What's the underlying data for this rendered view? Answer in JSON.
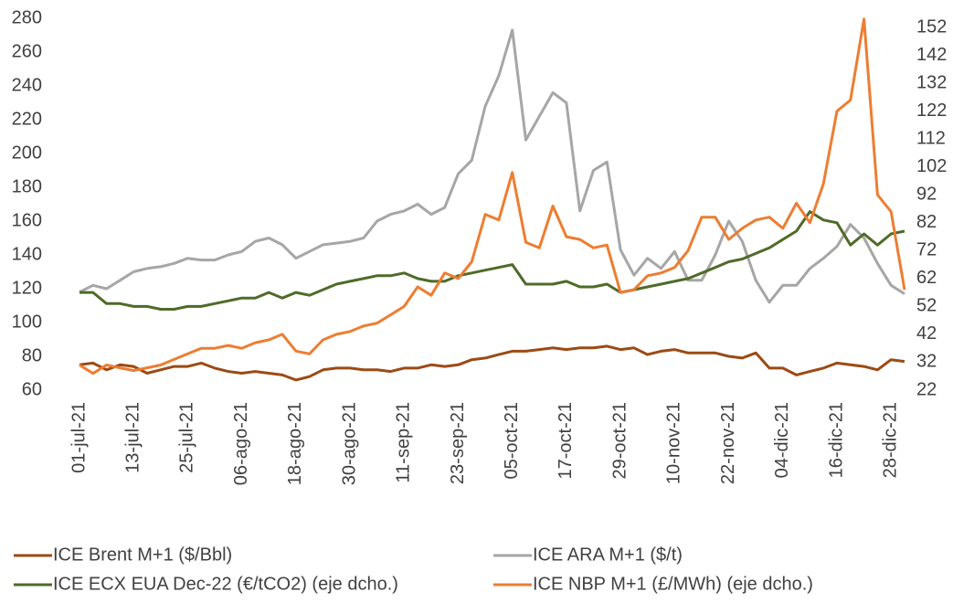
{
  "chart_data": {
    "type": "line",
    "categories": [
      "01-jul-21",
      null,
      null,
      null,
      "13-jul-21",
      null,
      null,
      null,
      "25-jul-21",
      null,
      null,
      null,
      "06-ago-21",
      null,
      null,
      null,
      "18-ago-21",
      null,
      null,
      null,
      "30-ago-21",
      null,
      null,
      null,
      "11-sep-21",
      null,
      null,
      null,
      "23-sep-21",
      null,
      null,
      null,
      "05-oct-21",
      null,
      null,
      null,
      "17-oct-21",
      null,
      null,
      null,
      "29-oct-21",
      null,
      null,
      null,
      "10-nov-21",
      null,
      null,
      null,
      "22-nov-21",
      null,
      null,
      null,
      "04-dic-21",
      null,
      null,
      null,
      "16-dic-21",
      null,
      null,
      null,
      "28-dic-21",
      null
    ],
    "series": [
      {
        "name": "ICE Brent M+1 ($/Bbl)",
        "color": "#9c4a14",
        "values": [
          75,
          76,
          72,
          75,
          74,
          70,
          72,
          74,
          74,
          76,
          73,
          71,
          70,
          71,
          70,
          69,
          66,
          68,
          72,
          73,
          73,
          72,
          72,
          71,
          73,
          73,
          75,
          74,
          75,
          78,
          79,
          81,
          83,
          83,
          84,
          85,
          84,
          85,
          85,
          86,
          84,
          85,
          81,
          83,
          84,
          82,
          82,
          82,
          80,
          79,
          82,
          73,
          73,
          69,
          71,
          73,
          76,
          75,
          74,
          72,
          78,
          77
        ]
      },
      {
        "name": "ICE ARA M+1 ($/t)",
        "color": "#a6a6a6",
        "values": [
          118,
          122,
          120,
          125,
          130,
          132,
          133,
          135,
          138,
          137,
          137,
          140,
          142,
          148,
          150,
          146,
          138,
          142,
          146,
          147,
          148,
          150,
          160,
          164,
          166,
          170,
          164,
          168,
          188,
          196,
          228,
          246,
          273,
          208,
          222,
          236,
          230,
          166,
          190,
          195,
          143,
          128,
          138,
          132,
          142,
          125,
          125,
          140,
          160,
          148,
          125,
          112,
          122,
          122,
          132,
          138,
          145,
          158,
          150,
          135,
          122,
          117
        ]
      },
      {
        "name": "ICE ECX EUA Dec-22 (€/tCO2) (eje dcho.)",
        "color": "#4f6b28",
        "axis": "y2",
        "values": [
          57,
          57,
          53,
          53,
          52,
          52,
          51,
          51,
          52,
          52,
          53,
          54,
          55,
          55,
          57,
          55,
          57,
          56,
          58,
          60,
          61,
          62,
          63,
          63,
          64,
          62,
          61,
          61,
          63,
          64,
          65,
          66,
          67,
          60,
          60,
          60,
          61,
          59,
          59,
          60,
          57,
          58,
          59,
          60,
          61,
          62,
          64,
          66,
          68,
          69,
          71,
          73,
          76,
          79,
          86,
          83,
          82,
          74,
          78,
          74,
          78,
          79
        ]
      },
      {
        "name": "ICE NBP M+1 (£/MWh) (eje dcho.)",
        "color": "#ed7d31",
        "axis": "y2",
        "values": [
          31,
          28,
          31,
          30,
          29,
          30,
          31,
          33,
          35,
          37,
          37,
          38,
          37,
          39,
          40,
          42,
          36,
          35,
          40,
          42,
          43,
          45,
          46,
          49,
          52,
          59,
          56,
          64,
          62,
          68,
          85,
          83,
          100,
          75,
          73,
          88,
          77,
          76,
          73,
          74,
          57,
          58,
          63,
          64,
          66,
          72,
          84,
          84,
          76,
          80,
          83,
          84,
          80,
          89,
          82,
          96,
          122,
          126,
          155,
          92,
          86,
          58
        ]
      }
    ],
    "ylim": [
      60,
      280
    ],
    "yticks": [
      60,
      80,
      100,
      120,
      140,
      160,
      180,
      200,
      220,
      240,
      260,
      280
    ],
    "y2lim": [
      22,
      155.3
    ],
    "y2ticks": [
      22,
      32,
      42,
      52,
      62,
      72,
      82,
      92,
      102,
      112,
      122,
      132,
      142,
      152
    ],
    "grid": false,
    "legend": "bottom"
  }
}
